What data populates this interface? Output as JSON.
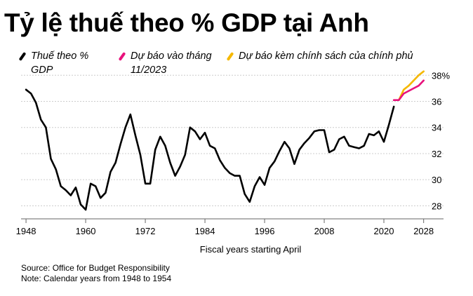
{
  "title": "Tỷ lệ thuế theo % GDP tại Anh",
  "source": "Source: Office for Budget Responsibility",
  "note": "Note: Calendar years from 1948 to 1954",
  "colors": {
    "actual": "#000000",
    "forecast": "#e8127c",
    "policy": "#f5b800",
    "grid": "#cccccc"
  },
  "chart_data": {
    "type": "line",
    "title": "Tỷ lệ thuế theo % GDP tại Anh",
    "xlabel": "Fiscal years starting April",
    "ylabel": "",
    "xlim": [
      1947,
      2032
    ],
    "ylim": [
      27,
      38.5
    ],
    "x_ticks": [
      1948,
      1960,
      1972,
      1984,
      1996,
      2008,
      2020,
      2028
    ],
    "y_ticks": [
      28,
      30,
      32,
      34,
      36,
      38
    ],
    "y_tick_labels": [
      "28",
      "30",
      "32",
      "34",
      "36",
      "38%"
    ],
    "grid": "horizontal",
    "legend_position": "top",
    "series": [
      {
        "name": "Thuế theo % GDP",
        "color": "#000000",
        "x": [
          1948,
          1949,
          1950,
          1951,
          1952,
          1953,
          1954,
          1955,
          1956,
          1957,
          1958,
          1959,
          1960,
          1961,
          1962,
          1963,
          1964,
          1965,
          1966,
          1967,
          1968,
          1969,
          1970,
          1971,
          1972,
          1973,
          1974,
          1975,
          1976,
          1977,
          1978,
          1979,
          1980,
          1981,
          1982,
          1983,
          1984,
          1985,
          1986,
          1987,
          1988,
          1989,
          1990,
          1991,
          1992,
          1993,
          1994,
          1995,
          1996,
          1997,
          1998,
          1999,
          2000,
          2001,
          2002,
          2003,
          2004,
          2005,
          2006,
          2007,
          2008,
          2009,
          2010,
          2011,
          2012,
          2013,
          2014,
          2015,
          2016,
          2017,
          2018,
          2019,
          2020,
          2021,
          2022
        ],
        "values": [
          36.9,
          36.6,
          35.9,
          34.6,
          34.0,
          31.6,
          30.8,
          29.5,
          29.2,
          28.8,
          29.4,
          28.1,
          27.7,
          29.7,
          29.5,
          28.6,
          29.0,
          30.6,
          31.3,
          32.7,
          34.0,
          35.0,
          33.4,
          31.9,
          29.7,
          29.7,
          32.3,
          33.3,
          32.6,
          31.3,
          30.3,
          31.0,
          31.9,
          34.0,
          33.7,
          33.1,
          33.6,
          32.6,
          32.4,
          31.5,
          30.9,
          30.5,
          30.3,
          30.3,
          28.9,
          28.3,
          29.5,
          30.2,
          29.6,
          30.9,
          31.4,
          32.2,
          32.9,
          32.4,
          31.2,
          32.3,
          32.8,
          33.2,
          33.7,
          33.8,
          33.8,
          32.1,
          32.3,
          33.1,
          33.3,
          32.6,
          32.5,
          32.4,
          32.6,
          33.5,
          33.4,
          33.7,
          32.9,
          34.2,
          35.6
        ]
      },
      {
        "name": "Dự báo vào tháng 11/2023",
        "color": "#e8127c",
        "x": [
          2022,
          2023,
          2024,
          2025,
          2026,
          2027,
          2028
        ],
        "values": [
          36.1,
          36.1,
          36.6,
          36.8,
          37.0,
          37.2,
          37.6
        ]
      },
      {
        "name": "Dự báo kèm chính sách của chính phủ",
        "color": "#f5b800",
        "x": [
          2023,
          2024,
          2025,
          2026,
          2027,
          2028
        ],
        "values": [
          36.1,
          36.9,
          37.2,
          37.6,
          38.0,
          38.3
        ]
      }
    ]
  }
}
